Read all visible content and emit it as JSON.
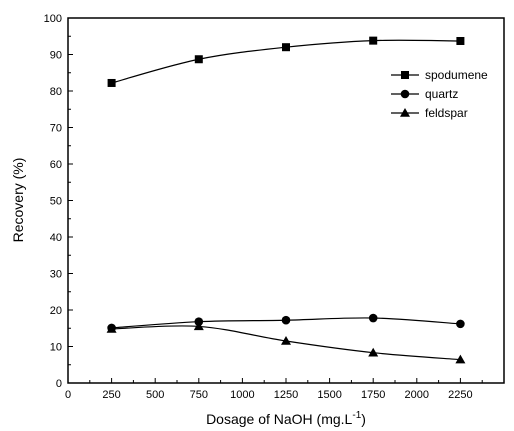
{
  "chart_data": {
    "type": "line",
    "title": "",
    "xlabel": "Dosage of NaOH (mg.L",
    "xlabel_superscript": "-1",
    "xlabel_suffix": ")",
    "ylabel": "Recovery (%)",
    "xlim": [
      0,
      2500
    ],
    "ylim": [
      0,
      100
    ],
    "x_ticks": [
      0,
      250,
      500,
      750,
      1000,
      1250,
      1500,
      1750,
      2000,
      2250
    ],
    "y_ticks": [
      0,
      10,
      20,
      30,
      40,
      50,
      60,
      70,
      80,
      90,
      100
    ],
    "grid": false,
    "legend_position": "top-right",
    "x": [
      250,
      750,
      1250,
      1750,
      2250
    ],
    "series": [
      {
        "name": "spodumene",
        "marker": "square",
        "values": [
          82.2,
          88.7,
          92.0,
          93.8,
          93.7
        ]
      },
      {
        "name": "quartz",
        "marker": "circle",
        "values": [
          15.1,
          16.8,
          17.2,
          17.8,
          16.2
        ]
      },
      {
        "name": "feldspar",
        "marker": "triangle",
        "values": [
          14.8,
          15.5,
          11.5,
          8.3,
          6.4
        ]
      }
    ],
    "line_color": "#000000"
  }
}
